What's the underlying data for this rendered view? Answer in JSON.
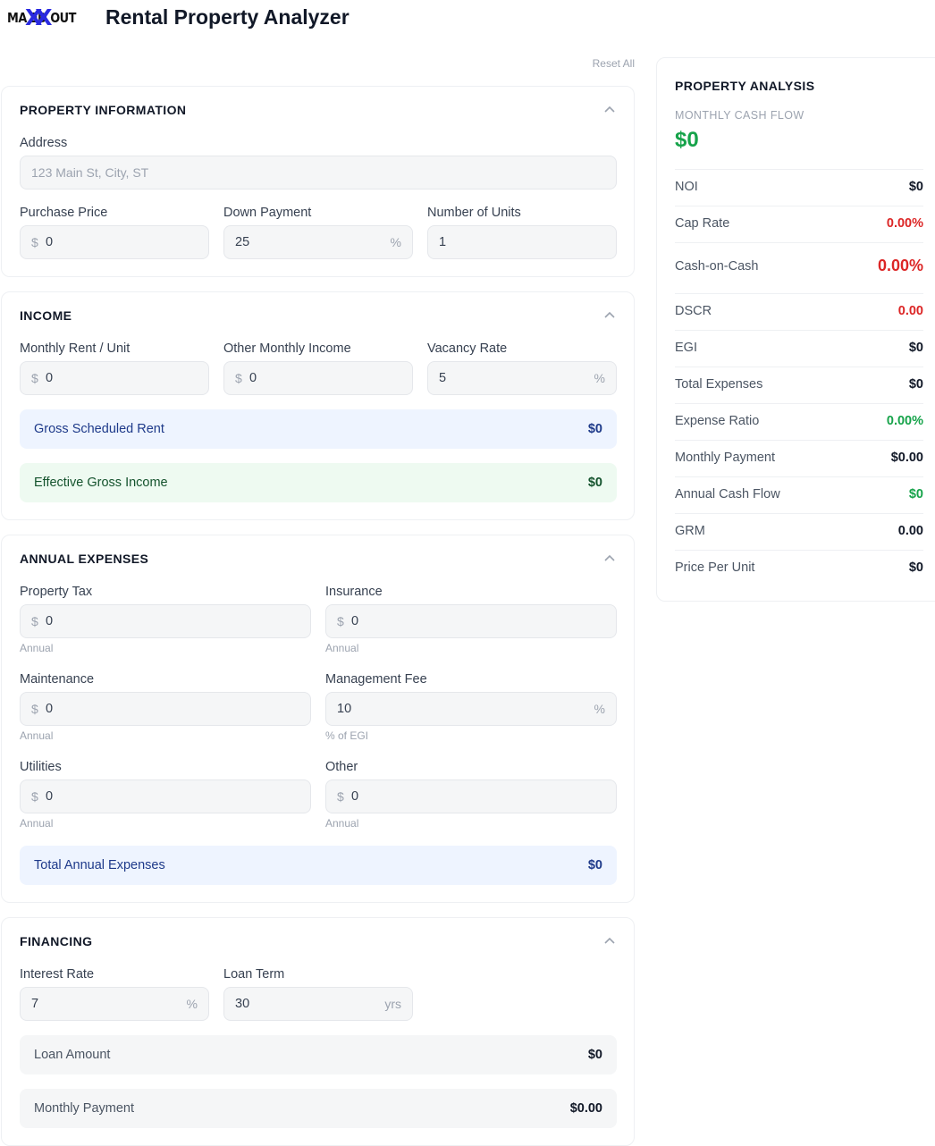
{
  "header": {
    "logo_text": "MA  ED OUT",
    "logo_mark": "XX",
    "title": "Rental Property Analyzer"
  },
  "reset_label": "Reset All",
  "property": {
    "title": "PROPERTY INFORMATION",
    "address_label": "Address",
    "address_placeholder": "123 Main St, City, ST",
    "purchase_label": "Purchase Price",
    "purchase_value": "0",
    "down_label": "Down Payment",
    "down_value": "25",
    "units_label": "Number of Units",
    "units_value": "1"
  },
  "income": {
    "title": "INCOME",
    "rent_label": "Monthly Rent / Unit",
    "rent_value": "0",
    "other_label": "Other Monthly Income",
    "other_value": "0",
    "vacancy_label": "Vacancy Rate",
    "vacancy_value": "5",
    "gsr_label": "Gross Scheduled Rent",
    "gsr_value": "$0",
    "egi_label": "Effective Gross Income",
    "egi_value": "$0"
  },
  "expenses": {
    "title": "ANNUAL EXPENSES",
    "tax_label": "Property Tax",
    "tax_value": "0",
    "tax_hint": "Annual",
    "ins_label": "Insurance",
    "ins_value": "0",
    "ins_hint": "Annual",
    "maint_label": "Maintenance",
    "maint_value": "0",
    "maint_hint": "Annual",
    "mgmt_label": "Management Fee",
    "mgmt_value": "10",
    "mgmt_hint": "% of EGI",
    "util_label": "Utilities",
    "util_value": "0",
    "util_hint": "Annual",
    "other_label": "Other",
    "other_value": "0",
    "other_hint": "Annual",
    "total_label": "Total Annual Expenses",
    "total_value": "$0"
  },
  "financing": {
    "title": "FINANCING",
    "rate_label": "Interest Rate",
    "rate_value": "7",
    "term_label": "Loan Term",
    "term_value": "30",
    "term_unit": "yrs",
    "loan_label": "Loan Amount",
    "loan_value": "$0",
    "payment_label": "Monthly Payment",
    "payment_value": "$0.00"
  },
  "units": {
    "dollar": "$",
    "percent": "%"
  },
  "analysis": {
    "title": "PROPERTY ANALYSIS",
    "cashflow_label": "MONTHLY CASH FLOW",
    "cashflow_value": "$0",
    "metrics": [
      {
        "label": "NOI",
        "value": "$0"
      },
      {
        "label": "Cap Rate",
        "value": "0.00%"
      },
      {
        "label": "Cash-on-Cash",
        "value": "0.00%"
      },
      {
        "label": "DSCR",
        "value": "0.00"
      },
      {
        "label": "EGI",
        "value": "$0"
      },
      {
        "label": "Total Expenses",
        "value": "$0"
      },
      {
        "label": "Expense Ratio",
        "value": "0.00%"
      },
      {
        "label": "Monthly Payment",
        "value": "$0.00"
      },
      {
        "label": "Annual Cash Flow",
        "value": "$0"
      },
      {
        "label": "GRM",
        "value": "0.00"
      },
      {
        "label": "Price Per Unit",
        "value": "$0"
      }
    ]
  },
  "colors": {
    "positive": "#16a34a",
    "negative": "#dc2626",
    "logo_accent": "#2a2ae0"
  }
}
